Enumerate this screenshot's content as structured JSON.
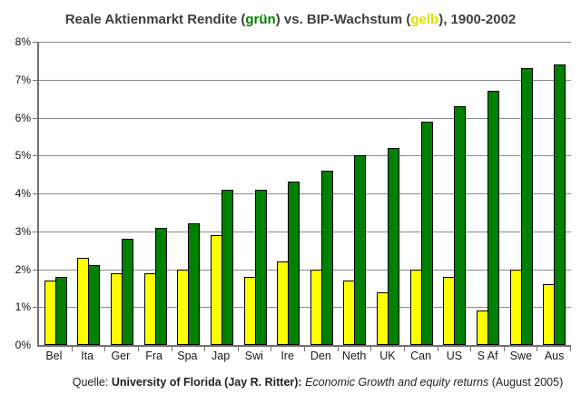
{
  "title": {
    "prefix": "Reale Aktienmarkt Rendite (",
    "green_word": "grün",
    "middle": ") vs. BIP-Wachstum (",
    "yellow_word": "gelb",
    "suffix": "), 1900-2002"
  },
  "source": {
    "label": "Quelle: ",
    "bold": "University of Florida (Jay R. Ritter): ",
    "italic": "Economic Growth and equity returns",
    "plain": " (August 2005)"
  },
  "colors": {
    "bar_green": "#008000",
    "bar_yellow": "#ffff00",
    "bar_border": "#000000",
    "title_green": "#008000",
    "title_yellow": "#e0e000",
    "gridline": "#8c8c8c",
    "axis": "#707070"
  },
  "chart_data": {
    "type": "bar",
    "title": "Reale Aktienmarkt Rendite (grün) vs. BIP-Wachstum (gelb), 1900-2002",
    "categories": [
      "Bel",
      "Ita",
      "Ger",
      "Fra",
      "Spa",
      "Jap",
      "Swi",
      "Ire",
      "Den",
      "Neth",
      "UK",
      "Can",
      "US",
      "S Af",
      "Swe",
      "Aus"
    ],
    "series": [
      {
        "name": "BIP-Wachstum (gelb)",
        "color": "#ffff00",
        "values": [
          1.7,
          2.3,
          1.9,
          1.9,
          2.0,
          2.9,
          1.8,
          2.2,
          2.0,
          1.7,
          1.4,
          2.0,
          1.8,
          0.9,
          2.0,
          1.6
        ]
      },
      {
        "name": "Reale Aktienmarkt Rendite (grün)",
        "color": "#008000",
        "values": [
          1.8,
          2.1,
          2.8,
          3.1,
          3.2,
          4.1,
          4.1,
          4.3,
          4.6,
          5.0,
          5.2,
          5.9,
          6.3,
          6.7,
          7.3,
          7.4
        ]
      }
    ],
    "ylabel": "",
    "xlabel": "",
    "ylim": [
      0,
      8
    ],
    "ytick_step": 1,
    "ytick_labels": [
      "0%",
      "1%",
      "2%",
      "3%",
      "4%",
      "5%",
      "6%",
      "7%",
      "8%"
    ],
    "grid": true,
    "legend_position": "in-title"
  }
}
